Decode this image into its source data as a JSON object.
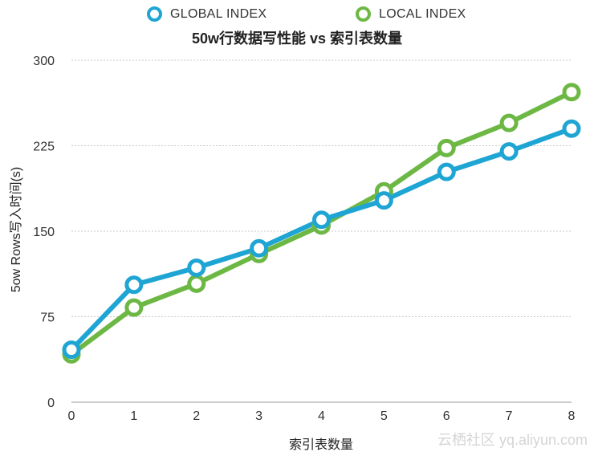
{
  "chart_data": {
    "type": "line",
    "title": "50w行数据写性能 vs 索引表数量",
    "xlabel": "索引表数量",
    "ylabel": "5ow Rows写入时间(s)",
    "x": [
      0,
      1,
      2,
      3,
      4,
      5,
      6,
      7,
      8
    ],
    "ylim": [
      0,
      300
    ],
    "yticks": [
      0,
      75,
      150,
      225,
      300
    ],
    "grid": true,
    "legend_position": "top",
    "series": [
      {
        "name": "GLOBAL INDEX",
        "color": "#1EA5D4",
        "values": [
          46,
          103,
          118,
          135,
          160,
          177,
          202,
          220,
          240
        ]
      },
      {
        "name": "LOCAL INDEX",
        "color": "#6DB844",
        "values": [
          42,
          83,
          104,
          130,
          155,
          185,
          223,
          245,
          272
        ]
      }
    ]
  },
  "watermark": "云栖社区 yq.aliyun.com"
}
